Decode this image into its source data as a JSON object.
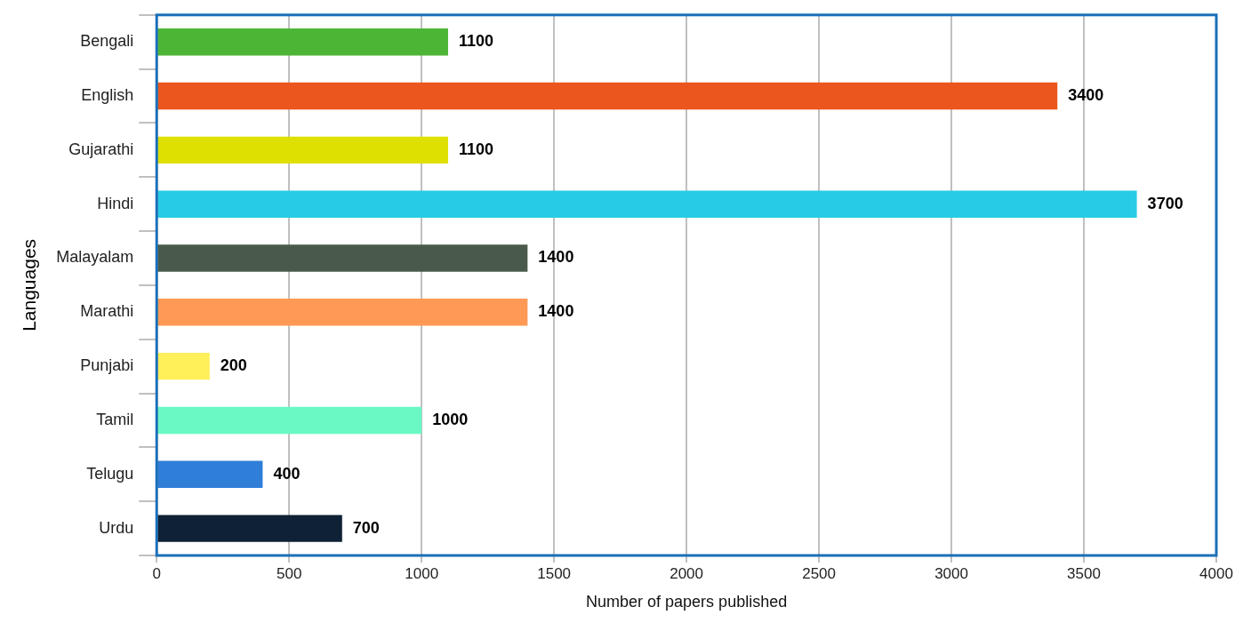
{
  "chart_data": {
    "type": "bar",
    "orientation": "horizontal",
    "xlabel": "Number of papers published",
    "ylabel": "Languages",
    "categories": [
      "Bengali",
      "English",
      "Gujarathi",
      "Hindi",
      "Malayalam",
      "Marathi",
      "Punjabi",
      "Tamil",
      "Telugu",
      "Urdu"
    ],
    "values": [
      1100,
      3400,
      1100,
      3700,
      1400,
      1400,
      200,
      1000,
      400,
      700
    ],
    "colors": [
      "#4db535",
      "#eb561e",
      "#dde000",
      "#27cce4",
      "#4a5a4a",
      "#ff9955",
      "#fff05a",
      "#6af9c4",
      "#2f7ed8",
      "#0e2135"
    ],
    "xlim": [
      0,
      4000
    ],
    "xticks": [
      0,
      500,
      1000,
      1500,
      2000,
      2500,
      3000,
      3500,
      4000
    ],
    "grid": true,
    "data_labels": true
  }
}
